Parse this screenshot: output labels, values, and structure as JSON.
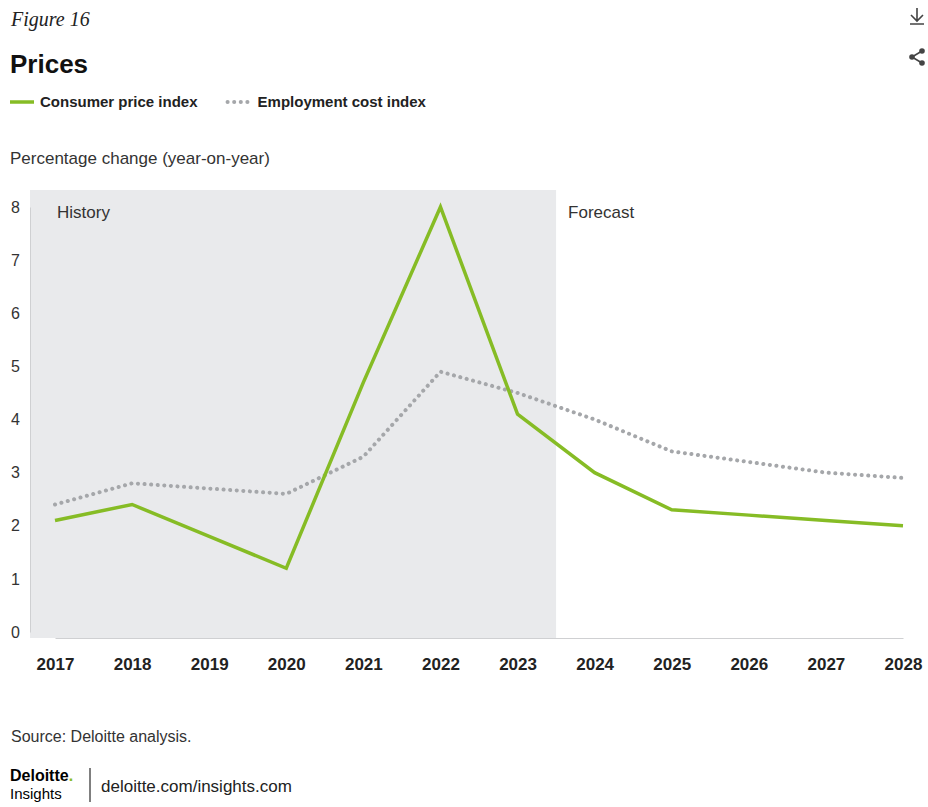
{
  "chart_data": {
    "type": "line",
    "figure_label": "Figure 16",
    "title": "Prices",
    "y_label": "Percentage change (year-on-year)",
    "categories": [
      "2017",
      "2018",
      "2019",
      "2020",
      "2021",
      "2022",
      "2023",
      "2024",
      "2025",
      "2026",
      "2027",
      "2028"
    ],
    "series": [
      {
        "name": "Consumer price index",
        "color": "#86bc25",
        "line_style": "solid",
        "values": [
          2.1,
          2.4,
          1.8,
          1.2,
          4.7,
          8.0,
          4.1,
          3.0,
          2.3,
          2.2,
          2.1,
          2.0
        ]
      },
      {
        "name": "Employment cost index",
        "color": "#a5a7aa",
        "line_style": "dotted",
        "values": [
          2.4,
          2.8,
          2.7,
          2.6,
          3.3,
          4.9,
          4.5,
          4.0,
          3.4,
          3.2,
          3.0,
          2.9
        ]
      }
    ],
    "ylim": [
      0,
      8
    ],
    "yticks": [
      0,
      1,
      2,
      3,
      4,
      5,
      6,
      7,
      8
    ],
    "grid": false,
    "annotations": [
      {
        "text": "History",
        "from": "2017",
        "to": "2023"
      },
      {
        "text": "Forecast",
        "from": "2024",
        "to": "2028"
      }
    ],
    "source": "Source: Deloitte analysis.",
    "brand": "Deloitte.",
    "brand_sub": "Insights",
    "url": "deloitte.com/insights.com"
  }
}
